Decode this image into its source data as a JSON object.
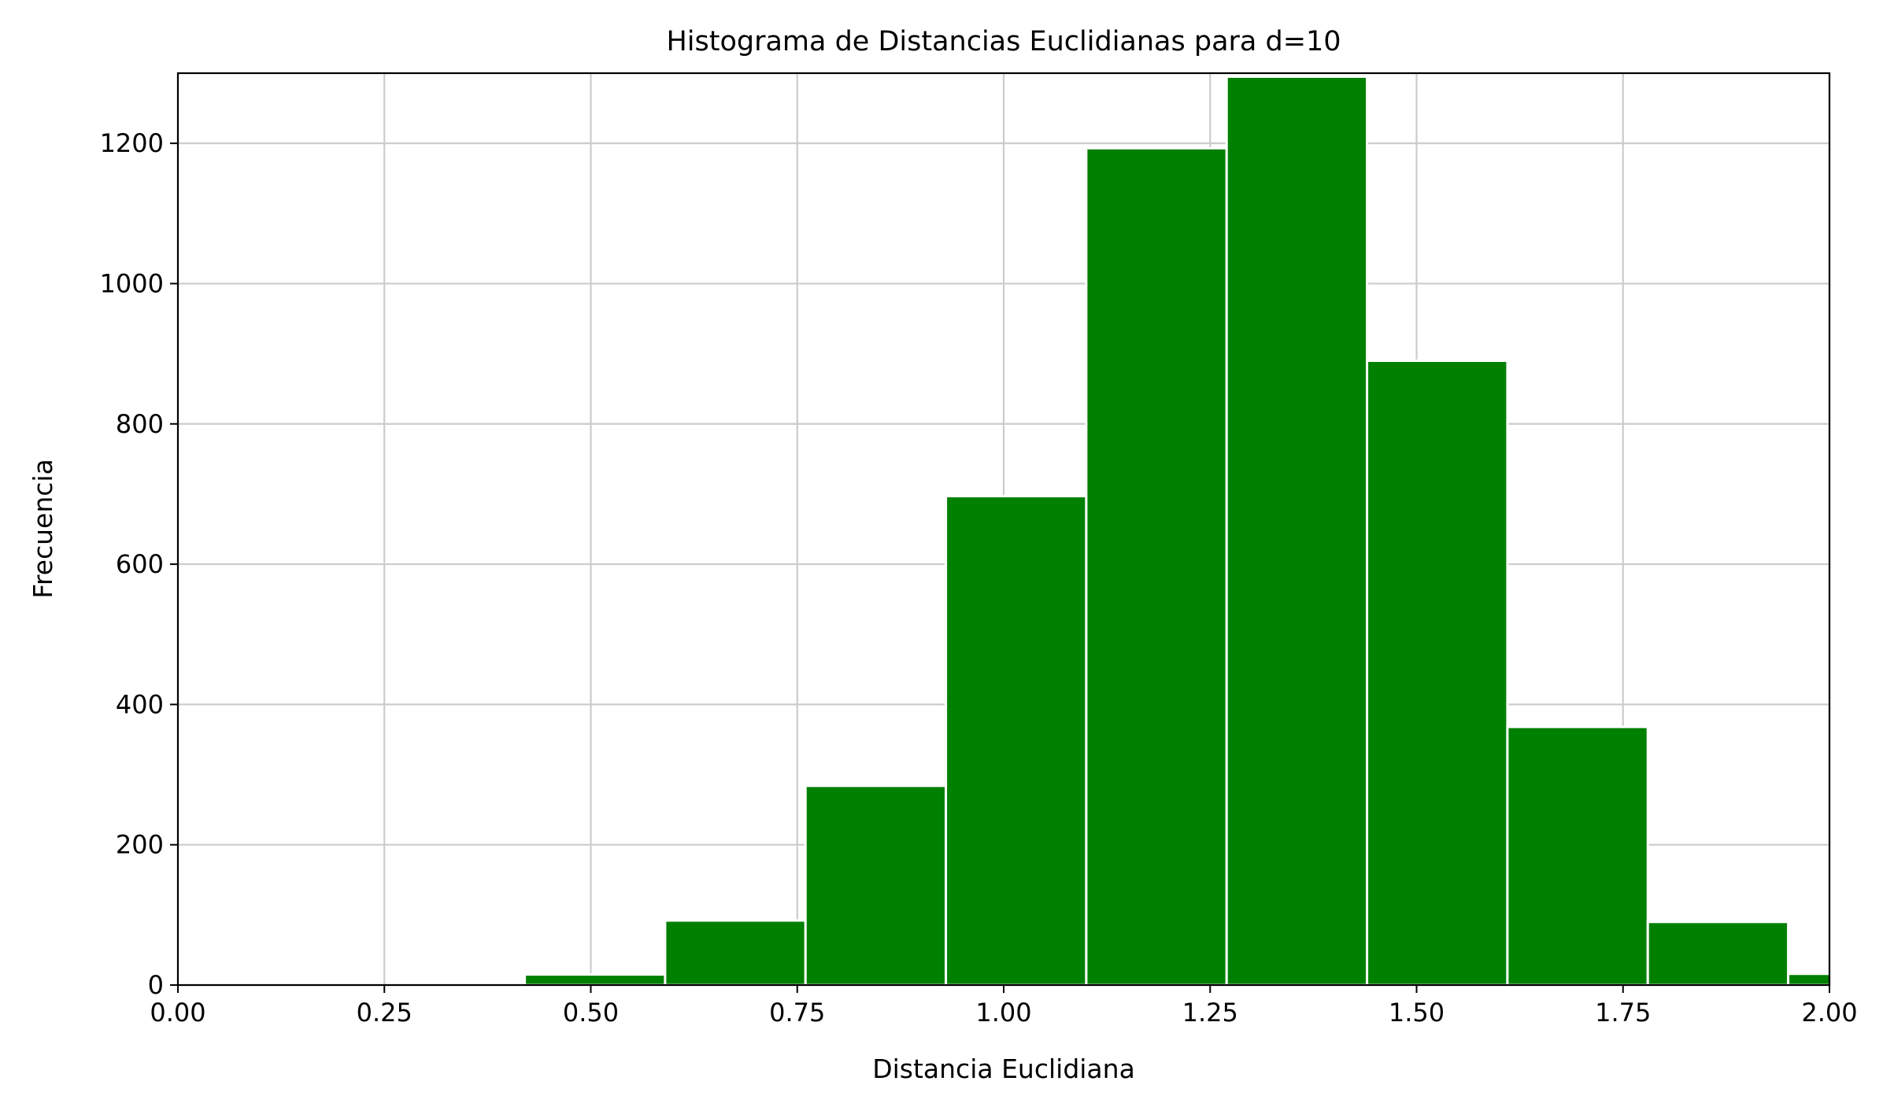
{
  "chart_data": {
    "type": "bar",
    "title": "Histograma de Distancias Euclidianas para d=10",
    "xlabel": "Distancia Euclidiana",
    "ylabel": "Frecuencia",
    "xlim": [
      0.0,
      2.0
    ],
    "ylim": [
      0,
      1300
    ],
    "xticks": [
      "0.00",
      "0.25",
      "0.50",
      "0.75",
      "1.00",
      "1.25",
      "1.50",
      "1.75",
      "2.00"
    ],
    "xtick_values": [
      0.0,
      0.25,
      0.5,
      0.75,
      1.0,
      1.25,
      1.5,
      1.75,
      2.0
    ],
    "yticks": [
      "0",
      "200",
      "400",
      "600",
      "800",
      "1000",
      "1200"
    ],
    "ytick_values": [
      0,
      200,
      400,
      600,
      800,
      1000,
      1200
    ],
    "bins": [
      {
        "x0": 0.42,
        "x1": 0.59,
        "value": 15
      },
      {
        "x0": 0.59,
        "x1": 0.76,
        "value": 92
      },
      {
        "x0": 0.76,
        "x1": 0.93,
        "value": 284
      },
      {
        "x0": 0.93,
        "x1": 1.1,
        "value": 697
      },
      {
        "x0": 1.1,
        "x1": 1.27,
        "value": 1193
      },
      {
        "x0": 1.27,
        "x1": 1.44,
        "value": 1295
      },
      {
        "x0": 1.44,
        "x1": 1.61,
        "value": 890
      },
      {
        "x0": 1.61,
        "x1": 1.78,
        "value": 368
      },
      {
        "x0": 1.78,
        "x1": 1.95,
        "value": 90
      },
      {
        "x0": 1.95,
        "x1": 2.12,
        "value": 16
      }
    ],
    "bar_color": "#008000",
    "edge_color": "#ffffff",
    "grid": true,
    "legend": false
  }
}
